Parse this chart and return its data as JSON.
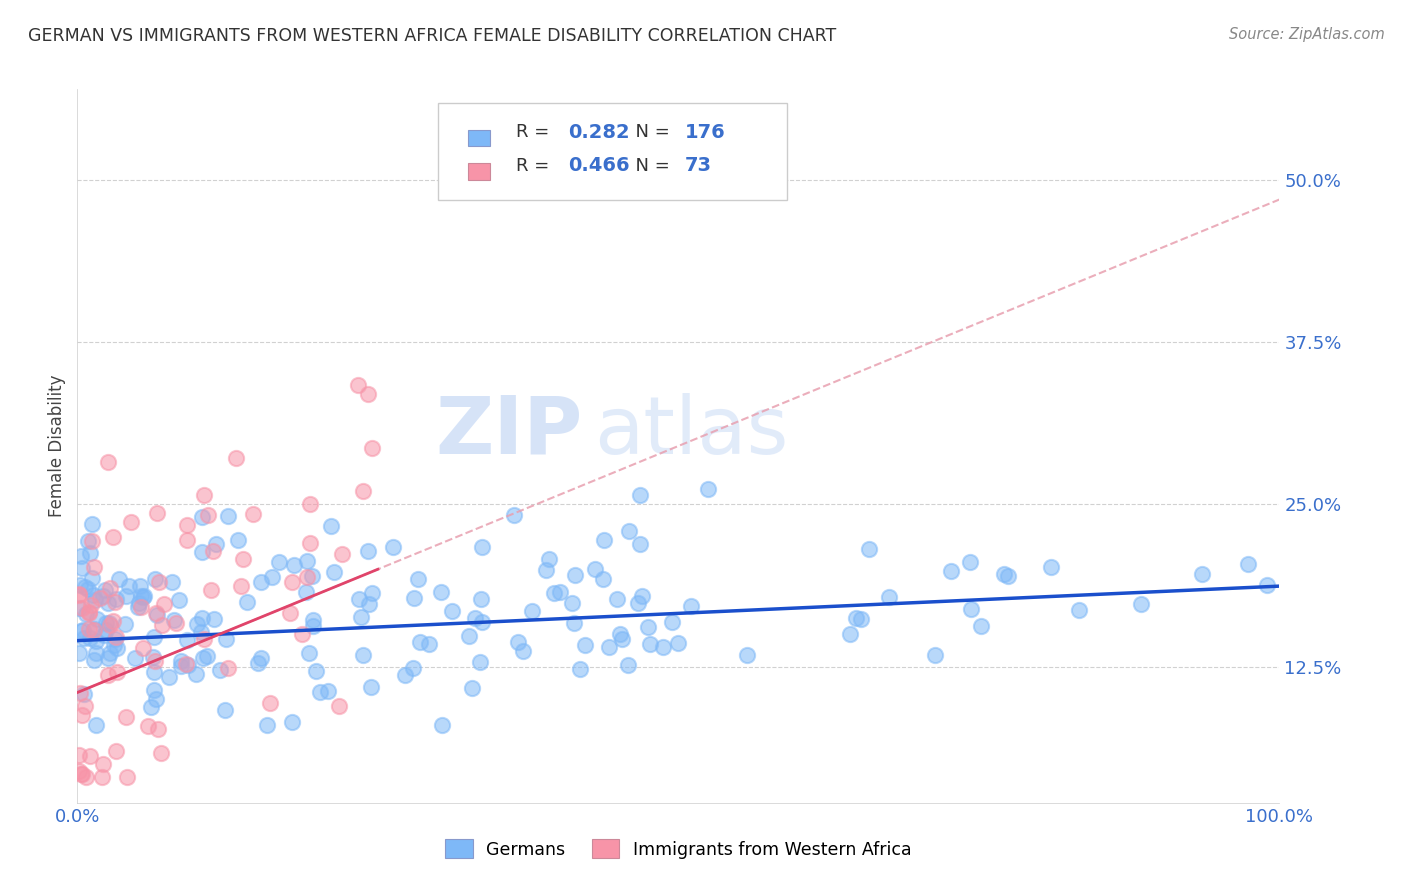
{
  "title": "GERMAN VS IMMIGRANTS FROM WESTERN AFRICA FEMALE DISABILITY CORRELATION CHART",
  "source": "Source: ZipAtlas.com",
  "ylabel": "Female Disability",
  "xlim": [
    0.0,
    1.0
  ],
  "ylim": [
    0.02,
    0.57
  ],
  "yticks": [
    0.125,
    0.25,
    0.375,
    0.5
  ],
  "yticklabels": [
    "12.5%",
    "25.0%",
    "37.5%",
    "50.0%"
  ],
  "legend_labels": [
    "Germans",
    "Immigrants from Western Africa"
  ],
  "r_german": 0.282,
  "n_german": 176,
  "r_immigrant": 0.466,
  "n_immigrant": 73,
  "color_german": "#7eb8f7",
  "color_immigrant": "#f794a8",
  "trendline_german_color": "#1a4fcc",
  "trendline_immigrant_color": "#e0446a",
  "trendline_immigrant_dashed_color": "#e8a0b0",
  "watermark_zip": "ZIP",
  "watermark_atlas": "atlas",
  "background_color": "#ffffff",
  "grid_color": "#cccccc",
  "tick_color": "#3a6fcc",
  "title_color": "#333333",
  "ylabel_color": "#444444",
  "source_color": "#888888",
  "german_seed": 42,
  "immigrant_seed": 99
}
